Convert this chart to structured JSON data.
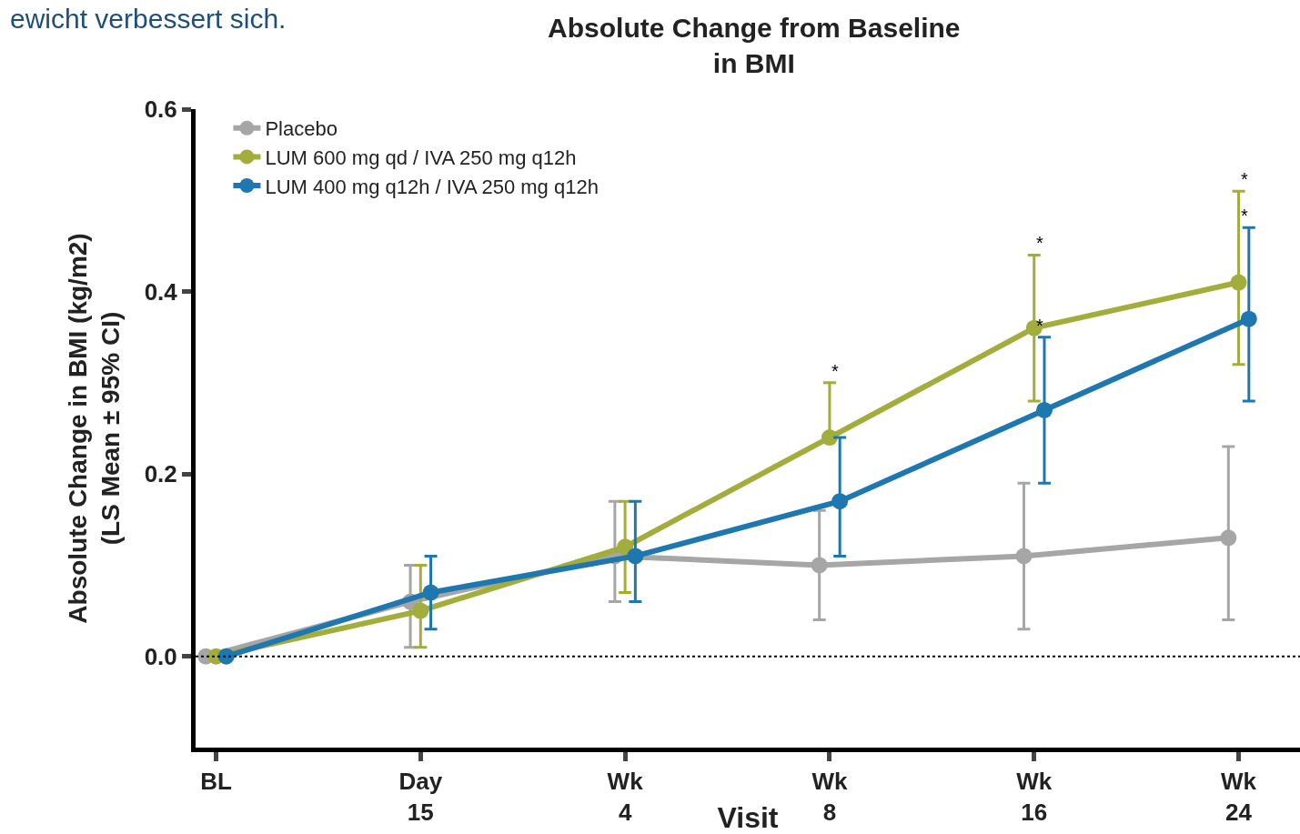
{
  "chart_data": {
    "type": "line",
    "title": "Absolute Change from Baseline\nin BMI",
    "xlabel": "Visit",
    "ylabel": "Absolute Change in BMI (kg/m2)\n(LS Mean ± 95% CI)",
    "categories": [
      "BL",
      "Day\n15",
      "Wk\n4",
      "Wk\n8",
      "Wk\n16",
      "Wk\n24"
    ],
    "ylim": [
      -0.1,
      0.6
    ],
    "yticks": [
      {
        "value": 0,
        "label": "0.0"
      },
      {
        "value": 0.2,
        "label": "0.2"
      },
      {
        "value": 0.4,
        "label": "0.4"
      },
      {
        "value": 0.6,
        "label": "0.6"
      }
    ],
    "series": [
      {
        "name": "Placebo",
        "color": "#a6a6a6",
        "values": [
          0,
          0.06,
          0.11,
          0.1,
          0.11,
          0.13
        ],
        "errors": [
          null,
          [
            0.01,
            0.1
          ],
          [
            0.06,
            0.17
          ],
          [
            0.04,
            0.16
          ],
          [
            0.03,
            0.19
          ],
          [
            0.04,
            0.23
          ]
        ]
      },
      {
        "name": "LUM 600 mg qd / IVA 250 mg q12h",
        "color": "#a3ad3c",
        "values": [
          0,
          0.05,
          0.12,
          0.24,
          0.36,
          0.41
        ],
        "errors": [
          null,
          [
            0.01,
            0.1
          ],
          [
            0.07,
            0.17
          ],
          [
            0.24,
            0.3
          ],
          [
            0.28,
            0.44
          ],
          [
            0.32,
            0.51
          ]
        ]
      },
      {
        "name": "LUM 400 mg q12h / IVA 250 mg q12h",
        "color": "#1f77b0",
        "values": [
          0,
          0.07,
          0.11,
          0.17,
          0.27,
          0.37
        ],
        "errors": [
          null,
          [
            0.03,
            0.11
          ],
          [
            0.06,
            0.17
          ],
          [
            0.11,
            0.24
          ],
          [
            0.19,
            0.35
          ],
          [
            0.28,
            0.47
          ]
        ]
      }
    ],
    "annotations": [
      "ewicht verbessert sich.",
      {
        "text": "*",
        "x": "Wk\n8",
        "y": 0.3
      },
      {
        "text": "*",
        "x": "Wk\n16",
        "y": 0.44
      },
      {
        "text": "*",
        "x": "Wk\n24",
        "y": 0.51
      },
      {
        "text": "*",
        "x": "Wk\n16",
        "y": 0.35
      },
      {
        "text": "*",
        "x": "Wk\n24",
        "y": 0.47
      }
    ],
    "ref_lines": [
      {
        "axis": "y",
        "value": 0,
        "color": "#000000",
        "line_style": "dotted"
      }
    ],
    "marker": "circle",
    "line_style": "solid",
    "grid": false,
    "legend": "top left"
  }
}
